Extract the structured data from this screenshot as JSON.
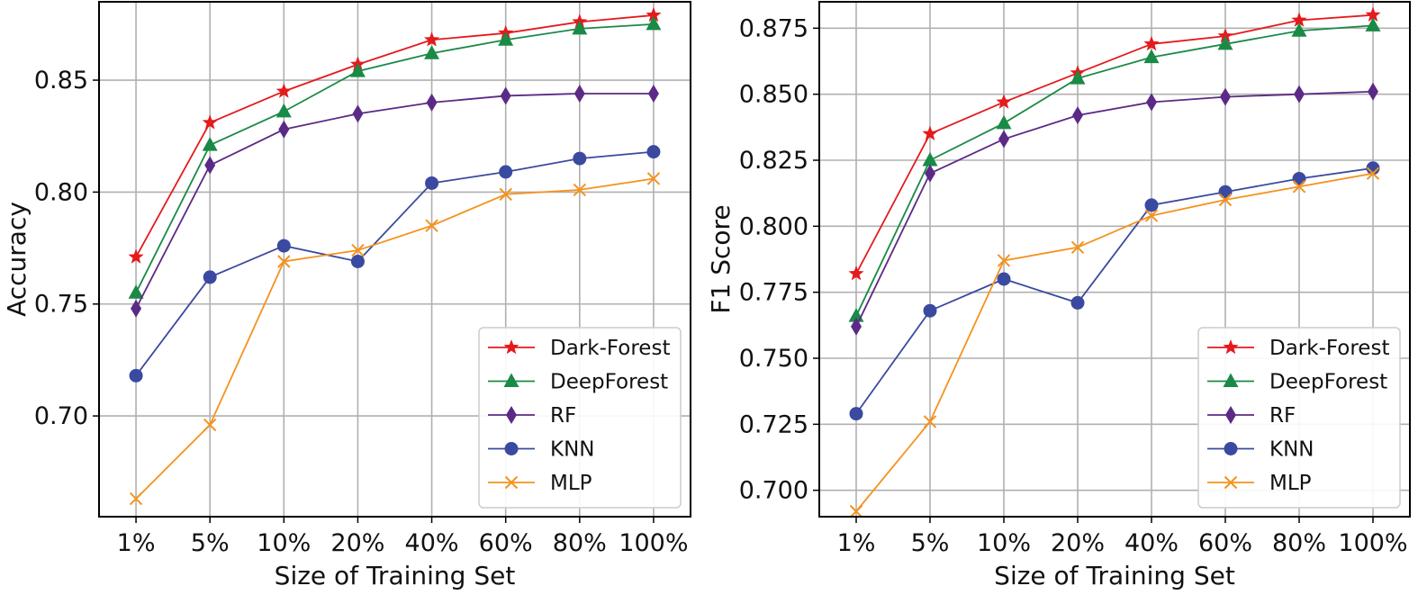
{
  "chart_data": [
    {
      "type": "line",
      "title": "",
      "xlabel": "Size of Training Set",
      "ylabel": "Accuracy",
      "categories": [
        "1%",
        "5%",
        "10%",
        "20%",
        "40%",
        "60%",
        "80%",
        "100%"
      ],
      "ylim": [
        0.655,
        0.885
      ],
      "yticks": [
        0.7,
        0.75,
        0.8,
        0.85
      ],
      "ytick_labels": [
        "0.70",
        "0.75",
        "0.80",
        "0.85"
      ],
      "grid": true,
      "legend_position": "bottom-right",
      "series": [
        {
          "name": "Dark-Forest",
          "color": "#e41a1c",
          "marker": "star",
          "values": [
            0.771,
            0.831,
            0.845,
            0.857,
            0.868,
            0.871,
            0.876,
            0.879
          ]
        },
        {
          "name": "DeepForest",
          "color": "#1a8a47",
          "marker": "triangle",
          "values": [
            0.755,
            0.821,
            0.836,
            0.854,
            0.862,
            0.868,
            0.873,
            0.875
          ]
        },
        {
          "name": "RF",
          "color": "#5b2a86",
          "marker": "diamond",
          "values": [
            0.748,
            0.812,
            0.828,
            0.835,
            0.84,
            0.843,
            0.844,
            0.844
          ]
        },
        {
          "name": "KNN",
          "color": "#3a4aa0",
          "marker": "circle",
          "values": [
            0.718,
            0.762,
            0.776,
            0.769,
            0.804,
            0.809,
            0.815,
            0.818
          ]
        },
        {
          "name": "MLP",
          "color": "#f5921e",
          "marker": "x",
          "values": [
            0.663,
            0.696,
            0.769,
            0.774,
            0.785,
            0.799,
            0.801,
            0.806
          ]
        }
      ]
    },
    {
      "type": "line",
      "title": "",
      "xlabel": "Size of Training Set",
      "ylabel": "F1 Score",
      "categories": [
        "1%",
        "5%",
        "10%",
        "20%",
        "40%",
        "60%",
        "80%",
        "100%"
      ],
      "ylim": [
        0.69,
        0.885
      ],
      "yticks": [
        0.7,
        0.725,
        0.75,
        0.775,
        0.8,
        0.825,
        0.85,
        0.875
      ],
      "ytick_labels": [
        "0.700",
        "0.725",
        "0.750",
        "0.775",
        "0.800",
        "0.825",
        "0.850",
        "0.875"
      ],
      "grid": true,
      "legend_position": "bottom-right",
      "series": [
        {
          "name": "Dark-Forest",
          "color": "#e41a1c",
          "marker": "star",
          "values": [
            0.782,
            0.835,
            0.847,
            0.858,
            0.869,
            0.872,
            0.878,
            0.88
          ]
        },
        {
          "name": "DeepForest",
          "color": "#1a8a47",
          "marker": "triangle",
          "values": [
            0.766,
            0.825,
            0.839,
            0.856,
            0.864,
            0.869,
            0.874,
            0.876
          ]
        },
        {
          "name": "RF",
          "color": "#5b2a86",
          "marker": "diamond",
          "values": [
            0.762,
            0.82,
            0.833,
            0.842,
            0.847,
            0.849,
            0.85,
            0.851
          ]
        },
        {
          "name": "KNN",
          "color": "#3a4aa0",
          "marker": "circle",
          "values": [
            0.729,
            0.768,
            0.78,
            0.771,
            0.808,
            0.813,
            0.818,
            0.822
          ]
        },
        {
          "name": "MLP",
          "color": "#f5921e",
          "marker": "x",
          "values": [
            0.692,
            0.726,
            0.787,
            0.792,
            0.804,
            0.81,
            0.815,
            0.82
          ]
        }
      ]
    }
  ]
}
